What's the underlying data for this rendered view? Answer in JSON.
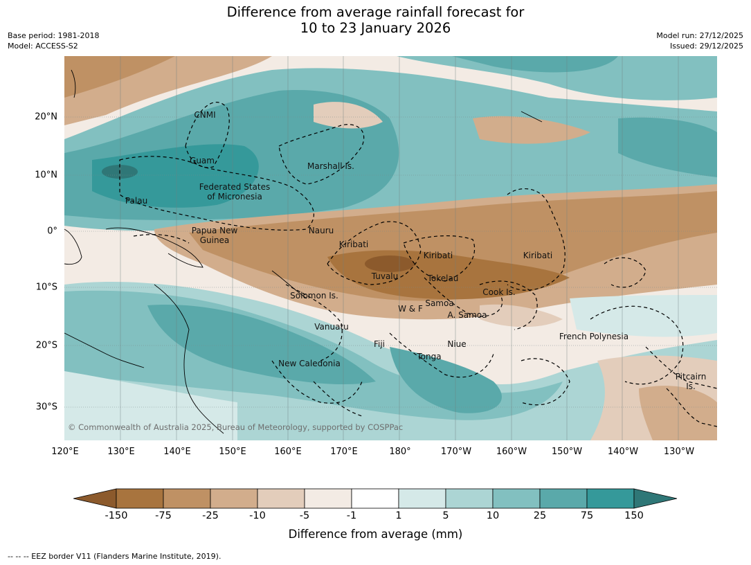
{
  "header": {
    "title_line1": "Difference from average rainfall forecast for",
    "title_line2": "10 to 23 January 2026",
    "base_period": "Base period: 1981-2018",
    "model": "Model: ACCESS-S2",
    "model_run": "Model run: 27/12/2025",
    "issued": "Issued: 29/12/2025"
  },
  "map": {
    "lat_labels": [
      "20°N",
      "10°N",
      "0°",
      "10°S",
      "20°S",
      "30°S"
    ],
    "lon_labels": [
      "120°E",
      "130°E",
      "140°E",
      "150°E",
      "160°E",
      "170°E",
      "180°",
      "170°W",
      "160°W",
      "150°W",
      "140°W",
      "130°W"
    ],
    "places": {
      "cnmi": "CNMI",
      "guam": "Guam",
      "marshall": "Marshall Is.",
      "fsm_line1": "Federated States",
      "fsm_line2": "of Micronesia",
      "palau": "Palau",
      "png_line1": "Papua New",
      "png_line2": "Guinea",
      "nauru": "Nauru",
      "kiribati_west": "Kiribati",
      "kiribati_central": "Kiribati",
      "kiribati_east": "Kiribati",
      "tuvalu": "Tuvalu",
      "tokelau": "Tokelau",
      "cook": "Cook Is.",
      "solomon": "Solomon Is.",
      "wf": "W & F",
      "samoa": "Samoa",
      "asamoa": "A. Samoa",
      "vanuatu": "Vanuatu",
      "fiji": "Fiji",
      "niue": "Niue",
      "tonga": "Tonga",
      "frpoly": "French Polynesia",
      "newcal": "New Caledonia",
      "pitcairn_line1": "Pitcairn",
      "pitcairn_line2": "Is."
    },
    "copyright": "© Commonwealth of Australia 2025, Bureau of Meteorology, supported by COSPPac"
  },
  "colorbar": {
    "ticks": [
      "-150",
      "-75",
      "-25",
      "-10",
      "-5",
      "-1",
      "1",
      "5",
      "10",
      "25",
      "75",
      "150"
    ],
    "colors": [
      "#8c5a2c",
      "#a8743e",
      "#bf9164",
      "#d2ad8c",
      "#e3cdbb",
      "#f3ebe4",
      "#ffffff",
      "#d5e9e8",
      "#acd5d4",
      "#82c0c0",
      "#5aa9aa",
      "#35999a",
      "#2f7777"
    ],
    "label": "Difference from average (mm)"
  },
  "footnote": "--  --  -- EEZ border V11 (Flanders Marine Institute, 2019)."
}
